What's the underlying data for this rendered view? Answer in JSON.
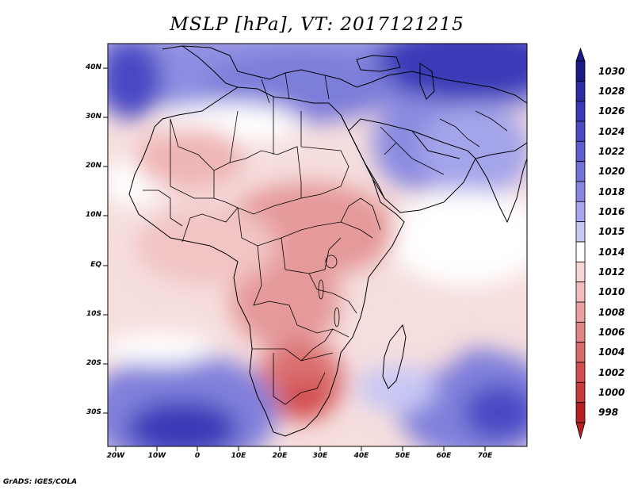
{
  "title": "MSLP [hPa], VT: 2017121215",
  "credit": "GrADS: IGES/COLA",
  "lat_labels": [
    "40N",
    "30N",
    "20N",
    "10N",
    "EQ",
    "10S",
    "20S",
    "30S"
  ],
  "lon_labels": [
    "20W",
    "10W",
    "0",
    "10E",
    "20E",
    "30E",
    "40E",
    "50E",
    "60E",
    "70E"
  ],
  "colorbar": {
    "labels": [
      "1030",
      "1028",
      "1026",
      "1024",
      "1022",
      "1020",
      "1018",
      "1016",
      "1015",
      "1014",
      "1012",
      "1010",
      "1008",
      "1006",
      "1004",
      "1002",
      "1000",
      "998"
    ],
    "colors": [
      "#1b1a8a",
      "#2c2ba6",
      "#3a3ab8",
      "#4a4ac4",
      "#5d5dd0",
      "#7171d8",
      "#8787e0",
      "#a6a6ec",
      "#c8c8f4",
      "#ffffff",
      "#f7d6d6",
      "#f2bcbc",
      "#e8a0a0",
      "#e08585",
      "#d86a6a",
      "#d24d4d",
      "#c83a3a",
      "#b52020"
    ]
  },
  "chart_data": {
    "type": "heatmap",
    "title": "MSLP [hPa], VT: 2017121215",
    "variable": "MSLP",
    "units": "hPa",
    "valid_time": "2017121215",
    "lon_range": [
      -22,
      80
    ],
    "lat_range": [
      -36,
      44
    ],
    "grid": false,
    "legend_placement": "right",
    "levels": [
      998,
      1000,
      1002,
      1004,
      1006,
      1008,
      1010,
      1012,
      1014,
      1015,
      1016,
      1018,
      1020,
      1022,
      1024,
      1026,
      1028,
      1030
    ],
    "features": [
      {
        "label": "high",
        "lon": 70,
        "lat": 42,
        "approx_value": 1030
      },
      {
        "label": "high",
        "lon": -18,
        "lat": 38,
        "approx_value": 1024
      },
      {
        "label": "high",
        "lon": -5,
        "lat": -32,
        "approx_value": 1026
      },
      {
        "label": "high",
        "lon": 70,
        "lat": -30,
        "approx_value": 1024
      },
      {
        "label": "low",
        "lon": 27,
        "lat": -26,
        "approx_value": 1004
      },
      {
        "label": "low",
        "lon": 25,
        "lat": 5,
        "approx_value": 1008
      },
      {
        "label": "low",
        "lon": 35,
        "lat": -10,
        "approx_value": 1008
      }
    ]
  }
}
